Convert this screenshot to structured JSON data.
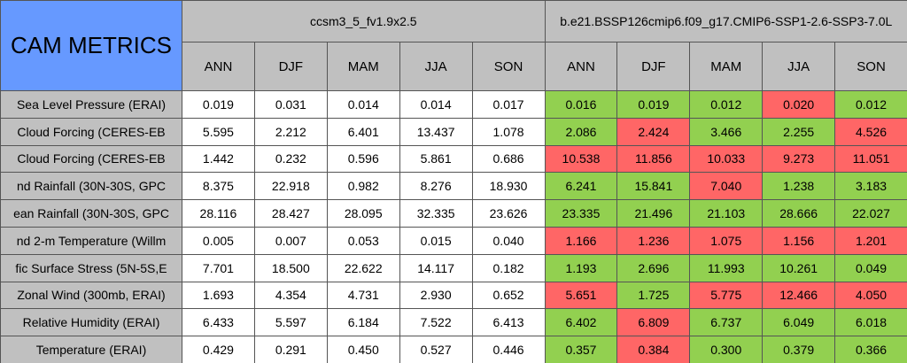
{
  "table": {
    "title": "CAM METRICS",
    "groups": [
      "ccsm3_5_fv1.9x2.5",
      "b.e21.BSSP126cmip6.f09_g17.CMIP6-SSP1-2.6-SSP3-7.0L"
    ],
    "columns": [
      "ANN",
      "DJF",
      "MAM",
      "JJA",
      "SON",
      "ANN",
      "DJF",
      "MAM",
      "JJA",
      "SON"
    ],
    "good_color": "#92d050",
    "bad_color": "#ff6666",
    "rows": [
      {
        "label": "Sea Level Pressure (ERAI)",
        "values": [
          "0.019",
          "0.031",
          "0.014",
          "0.014",
          "0.017",
          "0.016",
          "0.019",
          "0.012",
          "0.020",
          "0.012"
        ],
        "flags": [
          "good",
          "good",
          "good",
          "bad",
          "good"
        ]
      },
      {
        "label": "Cloud Forcing (CERES-EB",
        "values": [
          "5.595",
          "2.212",
          "6.401",
          "13.437",
          "1.078",
          "2.086",
          "2.424",
          "3.466",
          "2.255",
          "4.526"
        ],
        "flags": [
          "good",
          "bad",
          "good",
          "good",
          "bad"
        ]
      },
      {
        "label": "Cloud Forcing (CERES-EB",
        "values": [
          "1.442",
          "0.232",
          "0.596",
          "5.861",
          "0.686",
          "10.538",
          "11.856",
          "10.033",
          "9.273",
          "11.051"
        ],
        "flags": [
          "bad",
          "bad",
          "bad",
          "bad",
          "bad"
        ]
      },
      {
        "label": "nd Rainfall (30N-30S, GPC",
        "values": [
          "8.375",
          "22.918",
          "0.982",
          "8.276",
          "18.930",
          "6.241",
          "15.841",
          "7.040",
          "1.238",
          "3.183"
        ],
        "flags": [
          "good",
          "good",
          "bad",
          "good",
          "good"
        ]
      },
      {
        "label": "ean Rainfall (30N-30S, GPC",
        "values": [
          "28.116",
          "28.427",
          "28.095",
          "32.335",
          "23.626",
          "23.335",
          "21.496",
          "21.103",
          "28.666",
          "22.027"
        ],
        "flags": [
          "good",
          "good",
          "good",
          "good",
          "good"
        ]
      },
      {
        "label": "nd 2-m Temperature (Willm",
        "values": [
          "0.005",
          "0.007",
          "0.053",
          "0.015",
          "0.040",
          "1.166",
          "1.236",
          "1.075",
          "1.156",
          "1.201"
        ],
        "flags": [
          "bad",
          "bad",
          "bad",
          "bad",
          "bad"
        ]
      },
      {
        "label": "fic Surface Stress (5N-5S,E",
        "values": [
          "7.701",
          "18.500",
          "22.622",
          "14.117",
          "0.182",
          "1.193",
          "2.696",
          "11.993",
          "10.261",
          "0.049"
        ],
        "flags": [
          "good",
          "good",
          "good",
          "good",
          "good"
        ]
      },
      {
        "label": "Zonal Wind (300mb, ERAI)",
        "values": [
          "1.693",
          "4.354",
          "4.731",
          "2.930",
          "0.652",
          "5.651",
          "1.725",
          "5.775",
          "12.466",
          "4.050"
        ],
        "flags": [
          "bad",
          "good",
          "bad",
          "bad",
          "bad"
        ]
      },
      {
        "label": "Relative Humidity (ERAI)",
        "values": [
          "6.433",
          "5.597",
          "6.184",
          "7.522",
          "6.413",
          "6.402",
          "6.809",
          "6.737",
          "6.049",
          "6.018"
        ],
        "flags": [
          "good",
          "bad",
          "good",
          "good",
          "good"
        ]
      },
      {
        "label": "Temperature (ERAI)",
        "values": [
          "0.429",
          "0.291",
          "0.450",
          "0.527",
          "0.446",
          "0.357",
          "0.384",
          "0.300",
          "0.379",
          "0.366"
        ],
        "flags": [
          "good",
          "bad",
          "good",
          "good",
          "good"
        ]
      }
    ]
  }
}
